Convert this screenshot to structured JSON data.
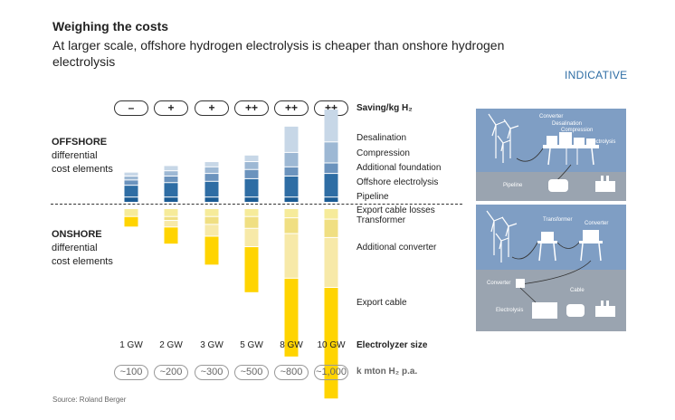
{
  "header": {
    "title": "Weighing the costs",
    "subtitle": "At larger scale, offshore hydrogen electrolysis is cheaper than onshore hydrogen electrolysis",
    "tag": "INDICATIVE"
  },
  "sections": {
    "offshore_title": "OFFSHORE",
    "offshore_sub1": "differential",
    "offshore_sub2": "cost elements",
    "onshore_title": "ONSHORE",
    "onshore_sub1": "differential",
    "onshore_sub2": "cost elements"
  },
  "rows": {
    "saving_label": "Saving/kg H₂",
    "saving_symbols": [
      "–",
      "+",
      "+",
      "++",
      "++",
      "++"
    ],
    "size_label": "Electrolyzer size",
    "production_label": "k mton H₂ p.a.",
    "production_values": [
      "~100",
      "~200",
      "~300",
      "~500",
      "~800",
      "~1,000"
    ]
  },
  "footer": {
    "source": "Source: Roland Berger"
  },
  "colors": {
    "pipeline": "#1b5c94",
    "offshore_electrolysis": "#2e6da4",
    "additional_foundation": "#6b93bd",
    "compression": "#9db8d4",
    "desalination": "#c7d7e7",
    "export_cable_losses": "#f6eb9a",
    "transformer": "#f0df82",
    "additional_converter": "#f7e9a8",
    "export_cable": "#ffd400",
    "diagram_offshore_bg": "#7f9ec4",
    "diagram_onshore_bg": "#9aa4b0"
  },
  "diagram": {
    "offshore_labels": [
      "Converter",
      "Desalination",
      "Compression",
      "Electrolysis",
      "Pipeline"
    ],
    "onshore_labels": [
      "Transformer",
      "Converter",
      "Converter",
      "Cable",
      "Electrolysis"
    ]
  },
  "chart_data": {
    "type": "bar",
    "subtype": "diverging-stacked",
    "categories": [
      "1 GW",
      "2 GW",
      "3 GW",
      "5 GW",
      "8 GW",
      "10 GW"
    ],
    "offshore_series": [
      {
        "name": "Pipeline",
        "values": [
          4,
          4,
          4,
          4,
          4,
          4
        ]
      },
      {
        "name": "Offshore electrolysis",
        "values": [
          9,
          11,
          12,
          14,
          16,
          18
        ]
      },
      {
        "name": "Additional foundation",
        "values": [
          4,
          5,
          6,
          7,
          7,
          8
        ]
      },
      {
        "name": "Compression",
        "values": [
          3,
          4,
          5,
          6,
          11,
          16
        ]
      },
      {
        "name": "Desalination",
        "values": [
          3,
          4,
          4,
          5,
          20,
          25
        ]
      }
    ],
    "onshore_series": [
      {
        "name": "Export cable losses",
        "values": [
          6,
          6,
          6,
          6,
          7,
          8
        ]
      },
      {
        "name": "Transformer",
        "values": [
          0,
          3,
          6,
          9,
          12,
          14
        ]
      },
      {
        "name": "Additional converter",
        "values": [
          0,
          5,
          9,
          14,
          34,
          38
        ]
      },
      {
        "name": "Export cable",
        "values": [
          8,
          13,
          22,
          35,
          60,
          85
        ]
      }
    ]
  }
}
